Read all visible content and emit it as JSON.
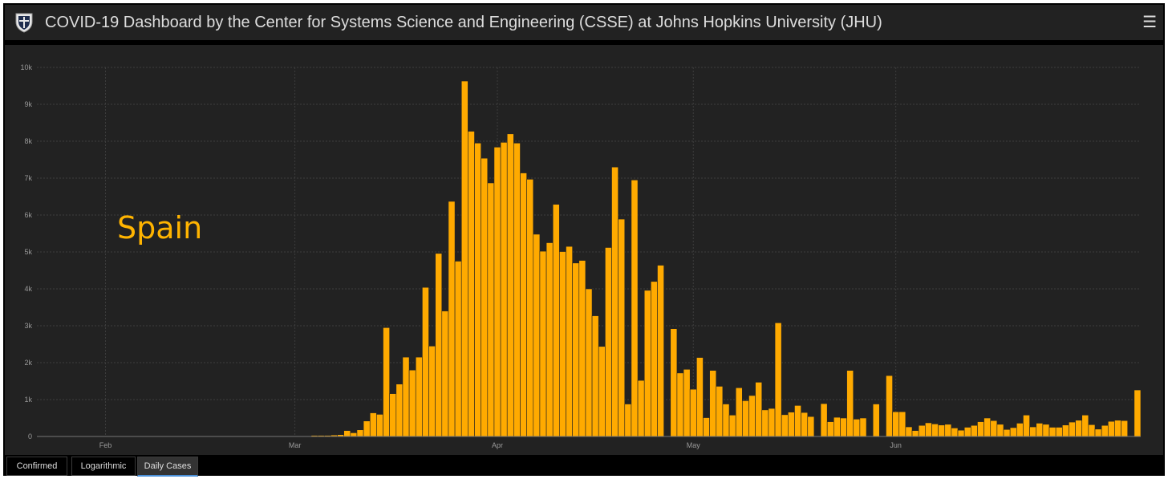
{
  "header": {
    "title": "COVID-19 Dashboard by the Center for Systems Science and Engineering (CSSE) at Johns Hopkins University (JHU)",
    "menu_icon": "☰"
  },
  "tabs": [
    {
      "label": "Confirmed",
      "active": false
    },
    {
      "label": "Logarithmic",
      "active": false
    },
    {
      "label": "Daily Cases",
      "active": true
    }
  ],
  "colors": {
    "bar": "#ffaa00",
    "background": "#222222",
    "annotation": "#ffb400",
    "active_tab": "#4a90d9"
  },
  "chart_data": {
    "type": "bar",
    "title": "",
    "xlabel": "",
    "ylabel": "",
    "annotation": "Spain",
    "ylim": [
      0,
      10000
    ],
    "y_ticks": [
      "0",
      "1k",
      "2k",
      "3k",
      "4k",
      "5k",
      "6k",
      "7k",
      "8k",
      "9k",
      "10k"
    ],
    "x_ticks": [
      {
        "label": "Feb",
        "index": 10
      },
      {
        "label": "Mar",
        "index": 39
      },
      {
        "label": "Apr",
        "index": 70
      },
      {
        "label": "May",
        "index": 100
      },
      {
        "label": "Jun",
        "index": 131
      }
    ],
    "grid": true,
    "start_date": "2020-01-22",
    "values": [
      0,
      0,
      0,
      0,
      0,
      0,
      0,
      0,
      0,
      0,
      0,
      0,
      0,
      0,
      0,
      0,
      0,
      0,
      0,
      0,
      0,
      0,
      0,
      0,
      0,
      0,
      0,
      0,
      0,
      0,
      0,
      0,
      0,
      0,
      0,
      0,
      0,
      0,
      0,
      0,
      0,
      0,
      30,
      30,
      30,
      40,
      50,
      160,
      100,
      180,
      420,
      640,
      600,
      2950,
      1160,
      1420,
      2150,
      1800,
      2150,
      4040,
      2450,
      4960,
      3400,
      6370,
      4750,
      9630,
      8270,
      7950,
      7540,
      6870,
      7840,
      7970,
      8200,
      7950,
      7140,
      6970,
      5480,
      5020,
      5250,
      6290,
      5010,
      5150,
      4700,
      4770,
      4000,
      3270,
      2440,
      5120,
      7300,
      5890,
      880,
      6950,
      1520,
      3960,
      4200,
      4640,
      0,
      2920,
      1720,
      1820,
      1280,
      2140,
      510,
      1790,
      1360,
      880,
      580,
      1320,
      970,
      1110,
      1470,
      720,
      760,
      3080,
      590,
      660,
      840,
      650,
      540,
      0,
      890,
      400,
      520,
      500,
      1790,
      470,
      500,
      0,
      880,
      0,
      1650,
      670,
      670,
      260,
      160,
      300,
      370,
      340,
      310,
      330,
      230,
      170,
      250,
      300,
      400,
      500,
      430,
      330,
      190,
      240,
      360,
      580,
      260,
      360,
      330,
      250,
      250,
      310,
      390,
      440,
      580,
      320,
      200,
      300,
      410,
      440,
      430,
      0,
      1260
    ]
  }
}
